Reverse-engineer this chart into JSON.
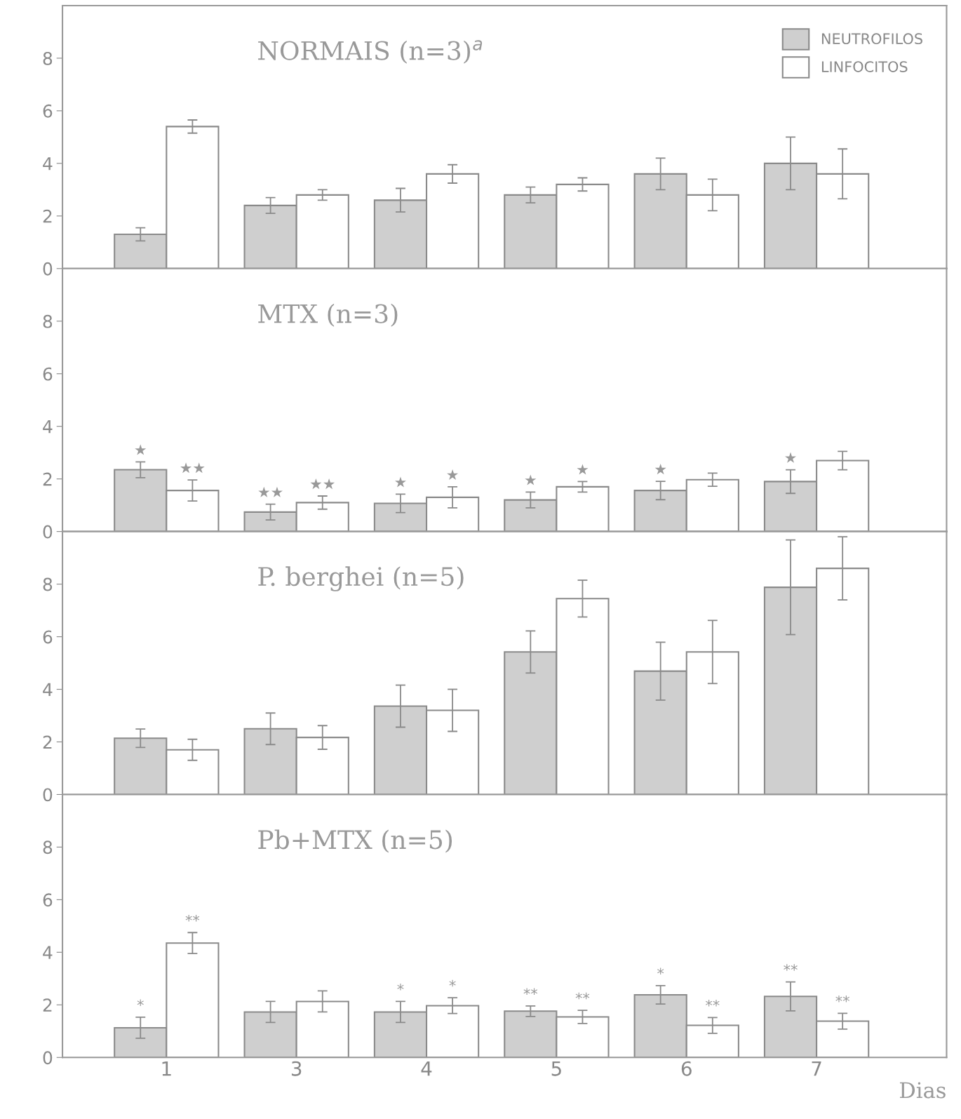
{
  "chart_data": [
    {
      "type": "bar",
      "title": "NORMAIS (n=3)$^{a}$",
      "categories": [
        "1",
        "3",
        "4",
        "5",
        "6",
        "7"
      ],
      "ylim": [
        0,
        10
      ],
      "yticks": [
        0,
        2,
        4,
        6,
        8
      ],
      "tick_labels": "y",
      "legend": "top right",
      "grid": false,
      "series": [
        {
          "name": "NEUTROFILOS",
          "color": "#cfcfcf",
          "values": [
            1.3,
            2.4,
            2.6,
            2.8,
            3.6,
            4.0
          ],
          "errors": [
            0.25,
            0.3,
            0.45,
            0.3,
            0.6,
            1.0
          ]
        },
        {
          "name": "LINFOCITOS",
          "color": "#ffffff",
          "values": [
            5.4,
            2.8,
            3.6,
            3.2,
            2.8,
            3.6
          ],
          "errors": [
            0.25,
            0.2,
            0.35,
            0.25,
            0.6,
            0.95
          ]
        }
      ]
    },
    {
      "type": "bar",
      "title": "MTX (n=3)",
      "categories": [
        "1",
        "3",
        "4",
        "5",
        "6",
        "7"
      ],
      "ylim": [
        0,
        10
      ],
      "yticks": [
        0,
        2,
        4,
        6,
        8
      ],
      "tick_labels": "y",
      "grid": false,
      "series": [
        {
          "color": "#cfcfcf",
          "values": [
            2.35,
            0.74,
            1.07,
            1.2,
            1.56,
            1.9
          ],
          "errors": [
            0.3,
            0.3,
            0.35,
            0.3,
            0.35,
            0.45
          ],
          "value_labels": [
            "★",
            "★★",
            "★",
            "★",
            "★",
            "★"
          ]
        },
        {
          "color": "#ffffff",
          "values": [
            1.56,
            1.1,
            1.3,
            1.7,
            1.97,
            2.7
          ],
          "errors": [
            0.4,
            0.25,
            0.4,
            0.2,
            0.25,
            0.35
          ],
          "value_labels": [
            "★★",
            "★★",
            "★",
            "★",
            null,
            null
          ]
        }
      ]
    },
    {
      "type": "bar",
      "title": "P. berghei (n=5)",
      "categories": [
        "1",
        "3",
        "4",
        "5",
        "6",
        "7"
      ],
      "ylim": [
        0,
        10
      ],
      "yticks": [
        0,
        2,
        4,
        6,
        8
      ],
      "tick_labels": "y",
      "grid": false,
      "series": [
        {
          "color": "#cfcfcf",
          "values": [
            2.14,
            2.5,
            3.36,
            5.42,
            4.69,
            7.88
          ],
          "errors": [
            0.35,
            0.6,
            0.8,
            0.8,
            1.1,
            1.8
          ]
        },
        {
          "color": "#ffffff",
          "values": [
            1.7,
            2.17,
            3.2,
            7.45,
            5.42,
            8.6
          ],
          "errors": [
            0.4,
            0.45,
            0.8,
            0.7,
            1.2,
            1.2
          ]
        }
      ]
    },
    {
      "type": "bar",
      "title": "Pb+MTX (n=5)",
      "xlabel": "Dias",
      "categories": [
        "1",
        "3",
        "4",
        "5",
        "6",
        "7"
      ],
      "ylim": [
        0,
        10
      ],
      "yticks": [
        0,
        2,
        4,
        6,
        8
      ],
      "grid": false,
      "series": [
        {
          "color": "#cfcfcf",
          "values": [
            1.13,
            1.73,
            1.73,
            1.76,
            2.38,
            2.32
          ],
          "errors": [
            0.4,
            0.4,
            0.4,
            0.2,
            0.35,
            0.55
          ],
          "value_labels": [
            "*",
            null,
            "*",
            "**",
            "*",
            "**"
          ]
        },
        {
          "color": "#ffffff",
          "values": [
            4.35,
            2.13,
            1.97,
            1.54,
            1.22,
            1.38
          ],
          "errors": [
            0.4,
            0.4,
            0.3,
            0.25,
            0.3,
            0.3
          ],
          "value_labels": [
            "**",
            null,
            "*",
            "**",
            "**",
            "**"
          ]
        }
      ]
    }
  ]
}
